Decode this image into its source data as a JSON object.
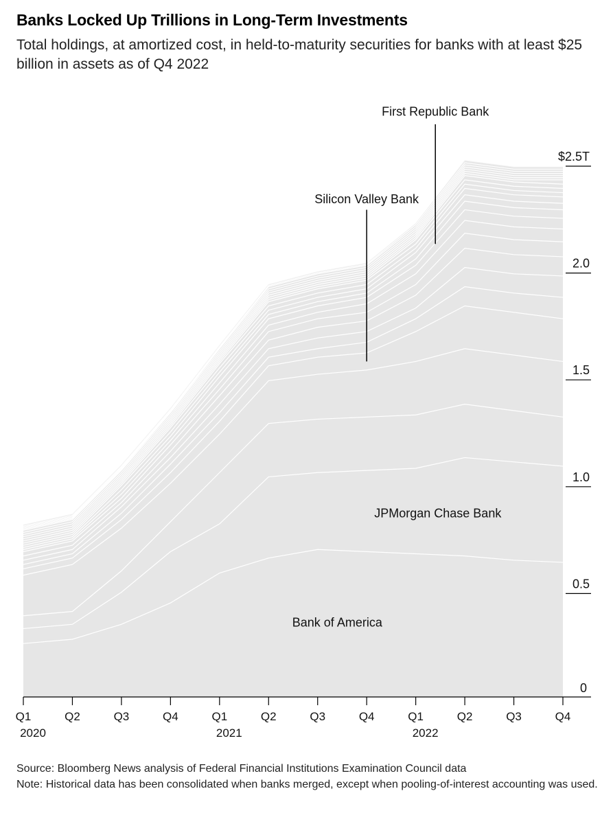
{
  "title": "Banks Locked Up Trillions in Long-Term Investments",
  "subtitle": "Total holdings, at amortized cost, in held-to-maturity securities for banks with at least $25 billion in assets as of Q4 2022",
  "source": "Source: Bloomberg News analysis of Federal Financial Institutions Examination Council data",
  "note": "Note: Historical data has been consolidated when banks merged, except when pooling-of-interest accounting was used.",
  "chart_data": {
    "type": "area",
    "stacked": true,
    "fill_color": "#e6e6e6",
    "line_color": "#ffffff",
    "x": [
      "Q1 2020",
      "Q2 2020",
      "Q3 2020",
      "Q4 2020",
      "Q1 2021",
      "Q2 2021",
      "Q3 2021",
      "Q4 2021",
      "Q1 2022",
      "Q2 2022",
      "Q3 2022",
      "Q4 2022"
    ],
    "x_tick_labels": [
      "Q1",
      "Q2",
      "Q3",
      "Q4",
      "Q1",
      "Q2",
      "Q3",
      "Q4",
      "Q1",
      "Q2",
      "Q3",
      "Q4"
    ],
    "x_year_labels": [
      {
        "index": 0,
        "label": "2020"
      },
      {
        "index": 4,
        "label": "2021"
      },
      {
        "index": 8,
        "label": "2022"
      }
    ],
    "y_ticks": [
      {
        "value": 0,
        "label": "0"
      },
      {
        "value": 0.5,
        "label": "0.5"
      },
      {
        "value": 1.0,
        "label": "1.0"
      },
      {
        "value": 1.5,
        "label": "1.5"
      },
      {
        "value": 2.0,
        "label": "2.0"
      },
      {
        "value": 2.5,
        "label": "$2.5T"
      }
    ],
    "ylim": [
      0,
      2.55
    ],
    "series": [
      {
        "name": "Bank of America",
        "values": [
          0.25,
          0.27,
          0.34,
          0.44,
          0.58,
          0.65,
          0.69,
          0.68,
          0.67,
          0.66,
          0.64,
          0.63
        ]
      },
      {
        "name": "",
        "values": [
          0.07,
          0.07,
          0.15,
          0.24,
          0.23,
          0.38,
          0.36,
          0.38,
          0.4,
          0.46,
          0.46,
          0.45
        ]
      },
      {
        "values": [
          0.06,
          0.06,
          0.1,
          0.14,
          0.24,
          0.25,
          0.25,
          0.25,
          0.25,
          0.25,
          0.24,
          0.23
        ]
      },
      {
        "name": "JPMorgan Chase Bank",
        "values": [
          0.19,
          0.22,
          0.2,
          0.18,
          0.18,
          0.2,
          0.21,
          0.22,
          0.25,
          0.26,
          0.26,
          0.26
        ]
      },
      {
        "values": [
          0.03,
          0.03,
          0.04,
          0.05,
          0.06,
          0.07,
          0.08,
          0.08,
          0.14,
          0.2,
          0.2,
          0.2
        ]
      },
      {
        "values": [
          0.02,
          0.02,
          0.03,
          0.04,
          0.04,
          0.04,
          0.04,
          0.05,
          0.06,
          0.09,
          0.09,
          0.1
        ]
      },
      {
        "values": [
          0.02,
          0.02,
          0.03,
          0.03,
          0.04,
          0.04,
          0.05,
          0.05,
          0.05,
          0.09,
          0.09,
          0.1
        ]
      },
      {
        "values": [
          0.02,
          0.02,
          0.02,
          0.03,
          0.04,
          0.04,
          0.05,
          0.05,
          0.06,
          0.09,
          0.09,
          0.09
        ]
      },
      {
        "values": [
          0.02,
          0.02,
          0.02,
          0.03,
          0.03,
          0.04,
          0.04,
          0.04,
          0.05,
          0.07,
          0.07,
          0.07
        ]
      },
      {
        "values": [
          0.01,
          0.01,
          0.02,
          0.02,
          0.03,
          0.03,
          0.03,
          0.04,
          0.05,
          0.06,
          0.06,
          0.06
        ]
      },
      {
        "values": [
          0.01,
          0.01,
          0.02,
          0.02,
          0.03,
          0.03,
          0.03,
          0.03,
          0.04,
          0.05,
          0.05,
          0.05
        ]
      },
      {
        "values": [
          0.01,
          0.01,
          0.02,
          0.02,
          0.02,
          0.02,
          0.02,
          0.02,
          0.03,
          0.04,
          0.04,
          0.04
        ]
      },
      {
        "values": [
          0.01,
          0.01,
          0.01,
          0.02,
          0.02,
          0.02,
          0.02,
          0.02,
          0.03,
          0.03,
          0.03,
          0.03
        ]
      },
      {
        "values": [
          0.01,
          0.01,
          0.01,
          0.01,
          0.02,
          0.02,
          0.02,
          0.02,
          0.02,
          0.03,
          0.03,
          0.03
        ]
      },
      {
        "values": [
          0.01,
          0.01,
          0.01,
          0.01,
          0.01,
          0.02,
          0.02,
          0.02,
          0.02,
          0.02,
          0.02,
          0.02
        ]
      },
      {
        "values": [
          0.01,
          0.01,
          0.01,
          0.01,
          0.01,
          0.01,
          0.01,
          0.01,
          0.02,
          0.02,
          0.02,
          0.02
        ]
      },
      {
        "values": [
          0.01,
          0.01,
          0.01,
          0.01,
          0.01,
          0.01,
          0.01,
          0.01,
          0.01,
          0.02,
          0.02,
          0.02
        ]
      },
      {
        "values": [
          0.01,
          0.01,
          0.01,
          0.01,
          0.01,
          0.01,
          0.01,
          0.01,
          0.01,
          0.01,
          0.01,
          0.02
        ]
      },
      {
        "values": [
          0.01,
          0.01,
          0.01,
          0.01,
          0.01,
          0.01,
          0.01,
          0.01,
          0.01,
          0.01,
          0.01,
          0.01
        ]
      },
      {
        "values": [
          0.005,
          0.005,
          0.005,
          0.01,
          0.01,
          0.01,
          0.01,
          0.01,
          0.01,
          0.01,
          0.01,
          0.01
        ]
      },
      {
        "values": [
          0.005,
          0.005,
          0.005,
          0.005,
          0.01,
          0.01,
          0.01,
          0.01,
          0.01,
          0.01,
          0.01,
          0.01
        ]
      },
      {
        "values": [
          0.005,
          0.005,
          0.005,
          0.005,
          0.005,
          0.01,
          0.01,
          0.01,
          0.01,
          0.01,
          0.01,
          0.01
        ]
      },
      {
        "values": [
          0.005,
          0.005,
          0.005,
          0.005,
          0.005,
          0.005,
          0.005,
          0.005,
          0.01,
          0.01,
          0.01,
          0.01
        ]
      },
      {
        "values": [
          0.005,
          0.005,
          0.005,
          0.005,
          0.005,
          0.005,
          0.005,
          0.005,
          0.005,
          0.01,
          0.01,
          0.01
        ]
      }
    ],
    "annotations": [
      {
        "label": "Bank of America",
        "x_index": 6.4,
        "y": 0.33,
        "leader": false
      },
      {
        "label": "JPMorgan Chase Bank",
        "x_index": 8.45,
        "y": 0.84,
        "leader": false
      },
      {
        "label": "Silicon Valley Bank",
        "x_index": 7.0,
        "y": 2.31,
        "leader": true,
        "leader_x_index": 7.0,
        "leader_y_top": 2.28,
        "leader_y_bottom": 1.57
      },
      {
        "label": "First Republic Bank",
        "x_index": 8.4,
        "y": 2.72,
        "leader": true,
        "leader_x_index": 8.4,
        "leader_y_top": 2.68,
        "leader_y_bottom": 2.12
      }
    ]
  }
}
